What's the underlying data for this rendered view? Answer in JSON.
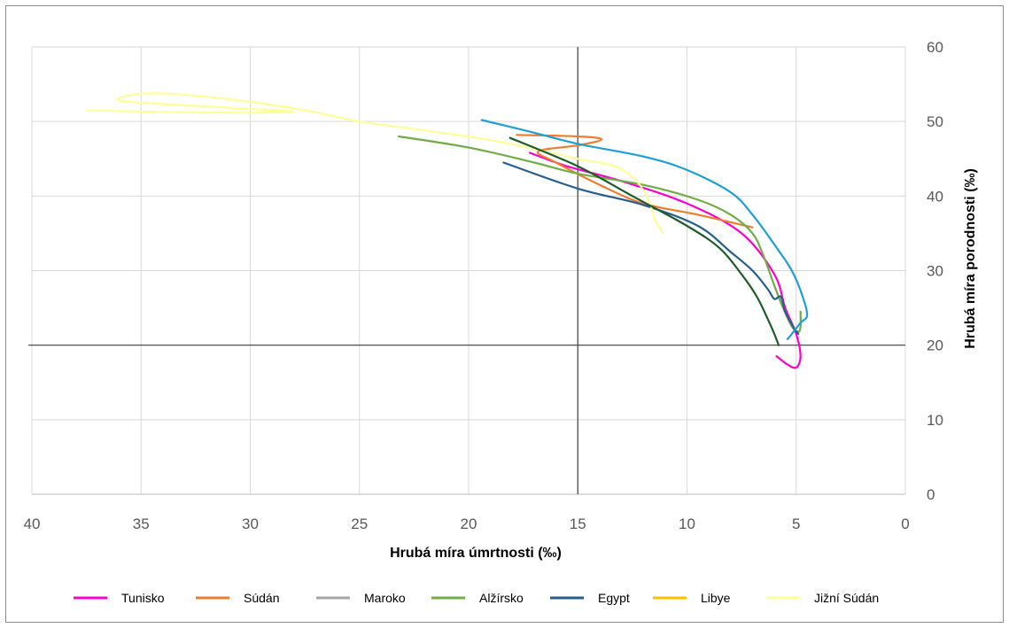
{
  "chart_data": {
    "type": "line",
    "xlabel": "Hrubá míra úmrtnosti (‰)",
    "ylabel": "Hrubá míra porodnosti (‰)",
    "xlim": [
      40,
      0
    ],
    "ylim": [
      0,
      60
    ],
    "x_ticks": [
      "40",
      "35",
      "30",
      "25",
      "20",
      "15",
      "10",
      "5",
      "0"
    ],
    "y_ticks": [
      "0",
      "10",
      "20",
      "30",
      "40",
      "50",
      "60"
    ],
    "x_reversed": true,
    "y_axis_position": "right",
    "reference_lines": {
      "x": 15,
      "y": 20
    },
    "grid": true,
    "legend_position": "bottom",
    "series": [
      {
        "name": "Tunisko",
        "color": "#ff00cc",
        "points": [
          [
            17.2,
            45.8
          ],
          [
            15.5,
            44
          ],
          [
            13,
            42
          ],
          [
            10,
            39
          ],
          [
            7.5,
            35
          ],
          [
            6,
            29.5
          ],
          [
            5.5,
            25
          ],
          [
            5,
            21.5
          ],
          [
            4.8,
            18.5
          ],
          [
            5,
            17
          ],
          [
            5.4,
            17.4
          ],
          [
            5.9,
            18.5
          ]
        ]
      },
      {
        "name": "Súdán",
        "color": "#ed7d31",
        "points": [
          [
            17.8,
            48.2
          ],
          [
            15,
            48
          ],
          [
            13.9,
            47.6
          ],
          [
            15,
            46.8
          ],
          [
            16.8,
            46
          ],
          [
            16,
            44.5
          ],
          [
            14,
            41.5
          ],
          [
            12,
            39
          ],
          [
            9.5,
            37.5
          ],
          [
            7,
            35.8
          ]
        ]
      },
      {
        "name": "Maroko",
        "color": "#a5a5a5",
        "points": []
      },
      {
        "name": "Alžírsko",
        "color": "#70ad47",
        "points": [
          [
            23.2,
            48
          ],
          [
            20,
            46.5
          ],
          [
            17,
            44.5
          ],
          [
            15,
            43
          ],
          [
            12,
            41.5
          ],
          [
            9.5,
            39.5
          ],
          [
            8,
            37.5
          ],
          [
            7,
            35
          ],
          [
            6.5,
            32
          ],
          [
            6,
            28
          ],
          [
            5.6,
            25
          ],
          [
            5.2,
            22.5
          ],
          [
            4.9,
            21.8
          ],
          [
            4.8,
            22.5
          ],
          [
            4.8,
            24.5
          ]
        ]
      },
      {
        "name": "Egypt",
        "color": "#255e91",
        "points": [
          [
            18.4,
            44.5
          ],
          [
            15,
            41
          ],
          [
            12,
            38.8
          ],
          [
            9.5,
            36
          ],
          [
            8,
            32.5
          ],
          [
            7,
            30
          ],
          [
            6.3,
            27.5
          ],
          [
            6,
            26.2
          ],
          [
            5.7,
            26.5
          ],
          [
            5.5,
            24.5
          ],
          [
            5.1,
            22.3
          ],
          [
            4.9,
            21.5
          ]
        ]
      },
      {
        "name": "Libye",
        "color": "#ffc000",
        "points": []
      },
      {
        "name": "Jižní Súdán",
        "color": "#ffff99",
        "points": [
          [
            37.5,
            51.5
          ],
          [
            32,
            51.2
          ],
          [
            28,
            51.3
          ],
          [
            32,
            52
          ],
          [
            36,
            52.8
          ],
          [
            34.5,
            53.8
          ],
          [
            31,
            53
          ],
          [
            27.5,
            51.5
          ],
          [
            25,
            50
          ],
          [
            22,
            48.8
          ],
          [
            19,
            47.5
          ],
          [
            16.5,
            46
          ],
          [
            15,
            45
          ],
          [
            13.3,
            44
          ],
          [
            12.3,
            42
          ],
          [
            11.7,
            39
          ],
          [
            11.5,
            37
          ],
          [
            11.1,
            35
          ]
        ]
      },
      {
        "name": "",
        "color": "#1f9ed8",
        "points": [
          [
            19.4,
            50.2
          ],
          [
            17,
            48.5
          ],
          [
            15,
            47
          ],
          [
            12,
            45.3
          ],
          [
            10,
            43.5
          ],
          [
            8,
            40.5
          ],
          [
            7,
            37.5
          ],
          [
            6,
            33.5
          ],
          [
            5.2,
            30
          ],
          [
            4.7,
            26.5
          ],
          [
            4.5,
            24
          ],
          [
            4.8,
            23
          ],
          [
            5.2,
            21.5
          ],
          [
            5.4,
            20.8
          ]
        ]
      },
      {
        "name": "",
        "color": "#1e5c2a",
        "points": [
          [
            18.1,
            47.8
          ],
          [
            15,
            44
          ],
          [
            12.5,
            40
          ],
          [
            10,
            36
          ],
          [
            8.5,
            33
          ],
          [
            7.5,
            29.5
          ],
          [
            6.8,
            26.5
          ],
          [
            6.3,
            23.5
          ],
          [
            6,
            21.5
          ],
          [
            5.8,
            20
          ]
        ]
      }
    ]
  }
}
